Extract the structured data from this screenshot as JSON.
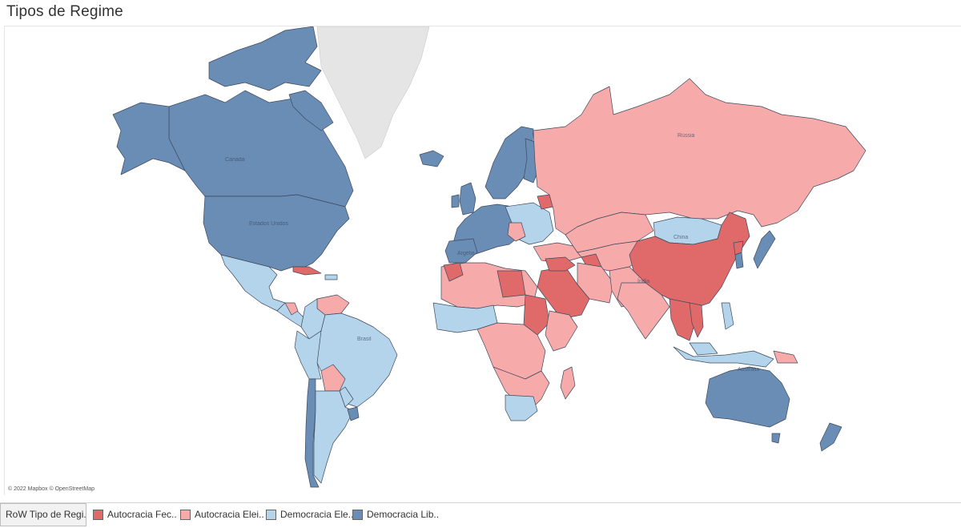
{
  "title": "Tipos de Regime",
  "attribution": "© 2022 Mapbox © OpenStreetMap",
  "colors": {
    "autocracia_fechada": "#e06a6a",
    "autocracia_eleitoral": "#f7aaaa",
    "democracia_eleitoral": "#b3d4ea",
    "democracia_liberal": "#6a8db5",
    "no_data": "#e5e5e5"
  },
  "legend": {
    "label": "RoW Tipo de Regi...",
    "items": [
      {
        "label": "Autocracia Fec..",
        "color": "#e06a6a"
      },
      {
        "label": "Autocracia Elei..",
        "color": "#f7aaaa"
      },
      {
        "label": "Democracia Ele..",
        "color": "#b3d4ea"
      },
      {
        "label": "Democracia Lib..",
        "color": "#6a8db5"
      }
    ]
  },
  "map_labels": {
    "canada": "Canada",
    "usa": "Estados Unidos",
    "russia": "Rússia",
    "china": "China",
    "brazil": "Brasil",
    "australia": "Austrália",
    "algeria": "Argélia",
    "india": "Índia"
  }
}
